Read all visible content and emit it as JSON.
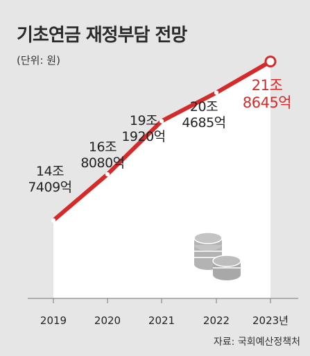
{
  "chart_data": {
    "type": "line",
    "title": "기초연금 재정부담 전망",
    "subtitle": "(단위: 원)",
    "source": "자료: 국회예산정책처",
    "x": [
      "2019",
      "2020",
      "2021",
      "2022",
      "2023년"
    ],
    "series": [
      {
        "values": [
          147409,
          168080,
          191920,
          204685,
          218645
        ],
        "labels_line1": [
          "14조",
          "16조",
          "19조",
          "20조",
          "21조"
        ],
        "labels_line2": [
          "7409억",
          "8080억",
          "1920억",
          "4685억",
          "8645억"
        ]
      }
    ],
    "value_unit": "억 원",
    "ylim": [
      100000,
      240000
    ],
    "grid": false,
    "legend": "none",
    "colors": {
      "line": "#d42a2a",
      "highlight_label": "#d42a2a",
      "label": "#222222",
      "plot_bg": "#ffffff",
      "page_bg": "#e6e6e6",
      "icon": "#b3b3b3"
    },
    "decoration_icon": "coin-stack-icon"
  }
}
